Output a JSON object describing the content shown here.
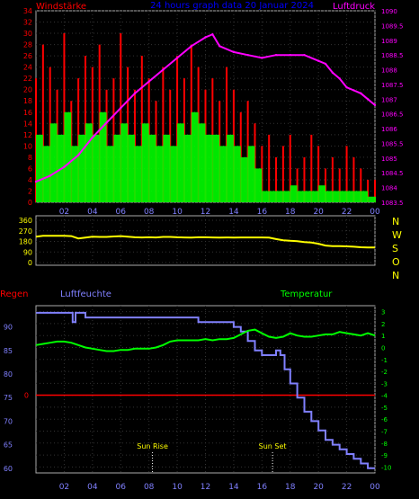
{
  "header": {
    "title": "24 hours graph data  20 Januar 2024",
    "left_label": "Windstärke",
    "right_label": "Luftdruck"
  },
  "colors": {
    "background": "#000000",
    "axis": "#aaaaaa",
    "grid": "#333333",
    "wind_gust": "#ff0000",
    "wind_avg": "#00ff00",
    "pressure": "#ff00ff",
    "direction": "#ffff00",
    "humidity": "#8080ff",
    "temperature": "#00ff00",
    "rain": "#ff0000",
    "title": "#0000ff",
    "left_tick": "#ff0000",
    "right_tick": "#ff00ff",
    "dir_tick": "#ffff00",
    "hum_tick": "#8080ff",
    "temp_tick": "#00ff00",
    "x_tick": "#8080ff",
    "sun_label": "#ffff00"
  },
  "x_ticks": [
    "02",
    "04",
    "06",
    "08",
    "10",
    "12",
    "14",
    "16",
    "18",
    "20",
    "22",
    "00"
  ],
  "chart_data": [
    {
      "type": "line",
      "title": "24 hours graph data  20 Januar 2024",
      "xlabel": "",
      "x_range_hours": [
        0,
        24
      ],
      "ylabel_left": "Windstärke",
      "ylabel_right": "Luftdruck",
      "ylim_left": [
        0,
        34
      ],
      "ylim_right": [
        1083.5,
        1090
      ],
      "y_ticks_left": [
        "0",
        "2",
        "4",
        "6",
        "8",
        "10",
        "12",
        "14",
        "16",
        "18",
        "20",
        "22",
        "24",
        "26",
        "28",
        "30",
        "32",
        "34"
      ],
      "y_ticks_right": [
        "1083.5",
        "1084",
        "1084.5",
        "1085",
        "1085.5",
        "1086",
        "1086.5",
        "1087",
        "1087.5",
        "1088",
        "1088.5",
        "1089",
        "1089.5",
        "1090"
      ],
      "series": [
        {
          "name": "",
          "axis": "left",
          "x": [
            0,
            0.5,
            1,
            1.5,
            2,
            2.5,
            3,
            3.5,
            4,
            4.5,
            5,
            5.5,
            6,
            6.5,
            7,
            7.5,
            8,
            8.5,
            9,
            9.5,
            10,
            10.5,
            11,
            11.5,
            12,
            12.5,
            13,
            13.5,
            14,
            14.5,
            15,
            15.5,
            16,
            16.5,
            17,
            17.5,
            18,
            18.5,
            19,
            19.5,
            20,
            20.5,
            21,
            21.5,
            22,
            22.5,
            23,
            23.5,
            24
          ],
          "values": [
            22,
            28,
            24,
            20,
            30,
            18,
            22,
            26,
            24,
            28,
            20,
            22,
            30,
            24,
            20,
            26,
            22,
            18,
            24,
            20,
            26,
            22,
            28,
            24,
            20,
            22,
            18,
            24,
            20,
            16,
            18,
            14,
            10,
            12,
            8,
            10,
            12,
            6,
            8,
            12,
            10,
            6,
            8,
            6,
            10,
            8,
            6,
            4,
            4
          ]
        },
        {
          "name": "",
          "axis": "left",
          "x": [
            0,
            0.5,
            1,
            1.5,
            2,
            2.5,
            3,
            3.5,
            4,
            4.5,
            5,
            5.5,
            6,
            6.5,
            7,
            7.5,
            8,
            8.5,
            9,
            9.5,
            10,
            10.5,
            11,
            11.5,
            12,
            12.5,
            13,
            13.5,
            14,
            14.5,
            15,
            15.5,
            16,
            16.5,
            17,
            17.5,
            18,
            18.5,
            19,
            19.5,
            20,
            20.5,
            21,
            21.5,
            22,
            22.5,
            23,
            23.5,
            24
          ],
          "values": [
            12,
            10,
            14,
            12,
            16,
            10,
            12,
            14,
            12,
            16,
            10,
            12,
            14,
            12,
            10,
            14,
            12,
            10,
            12,
            10,
            14,
            12,
            16,
            14,
            12,
            12,
            10,
            12,
            10,
            8,
            10,
            6,
            2,
            2,
            2,
            2,
            3,
            2,
            2,
            2,
            3,
            2,
            2,
            2,
            2,
            2,
            2,
            1,
            1
          ]
        },
        {
          "name": "",
          "axis": "right",
          "x": [
            0,
            1,
            2,
            3,
            4,
            5,
            6,
            7,
            8,
            9,
            10,
            11,
            12,
            12.5,
            13,
            14,
            15,
            16,
            17,
            18,
            19,
            20,
            20.5,
            21,
            21.5,
            22,
            22.5,
            23,
            23.5,
            24
          ],
          "values": [
            1084.2,
            1084.4,
            1084.7,
            1085.1,
            1085.7,
            1086.2,
            1086.7,
            1087.2,
            1087.6,
            1088.0,
            1088.4,
            1088.8,
            1089.1,
            1089.2,
            1088.8,
            1088.6,
            1088.5,
            1088.4,
            1088.5,
            1088.5,
            1088.5,
            1088.3,
            1088.2,
            1087.9,
            1087.7,
            1087.4,
            1087.3,
            1087.2,
            1087.0,
            1086.8
          ]
        }
      ]
    },
    {
      "type": "line",
      "title": "",
      "x_range_hours": [
        0,
        24
      ],
      "ylim": [
        0,
        360
      ],
      "y_ticks": [
        "0",
        "90",
        "180",
        "270",
        "360"
      ],
      "dir_labels": [
        "N",
        "W",
        "S",
        "O",
        "N"
      ],
      "series": [
        {
          "name": "",
          "x": [
            0,
            0.5,
            1,
            1.5,
            2,
            2.5,
            3,
            3.5,
            4,
            4.5,
            5,
            5.5,
            6,
            6.5,
            7,
            7.5,
            8,
            8.5,
            9,
            9.5,
            10,
            10.5,
            11,
            11.5,
            12,
            12.5,
            13,
            13.5,
            14,
            14.5,
            15,
            15.5,
            16,
            16.5,
            17,
            17.5,
            18,
            18.5,
            19,
            19.5,
            20,
            20.5,
            21,
            21.5,
            22,
            22.5,
            23,
            23.5,
            24
          ],
          "values": [
            220,
            228,
            228,
            228,
            228,
            225,
            205,
            212,
            220,
            218,
            218,
            222,
            225,
            220,
            215,
            214,
            215,
            214,
            218,
            218,
            215,
            214,
            213,
            215,
            215,
            214,
            213,
            214,
            213,
            214,
            214,
            214,
            214,
            212,
            200,
            190,
            185,
            182,
            175,
            170,
            160,
            145,
            140,
            140,
            138,
            135,
            130,
            128,
            128
          ]
        }
      ]
    },
    {
      "type": "line",
      "title": "",
      "x_range_hours": [
        0,
        24
      ],
      "labels_top": [
        "Regen",
        "Luftfeuchte",
        "Temperatur"
      ],
      "ylim_humidity": [
        59,
        94.5
      ],
      "ylim_temperature": [
        -10.5,
        3.5
      ],
      "y_ticks_humidity": [
        "60",
        "65",
        "70",
        "75",
        "80",
        "85",
        "90"
      ],
      "y_ticks_temperature": [
        "-10",
        "-9",
        "-8",
        "-7",
        "-6",
        "-5",
        "-4",
        "-3",
        "-2",
        "-1",
        "0",
        "1",
        "2",
        "3"
      ],
      "rain_axis_label": "0",
      "annotations": [
        {
          "label": "Sun Rise",
          "hour": 8.25
        },
        {
          "label": "Sun Set",
          "hour": 16.75
        }
      ],
      "series": [
        {
          "name": "",
          "axis": "humidity",
          "x": [
            0,
            0.5,
            1,
            1.5,
            2,
            2.5,
            2.6,
            2.8,
            3,
            3.5,
            4,
            4.5,
            5,
            6,
            7,
            8,
            9,
            10,
            10.5,
            11,
            11.5,
            12,
            12.5,
            13,
            14,
            14.5,
            15,
            15.5,
            16,
            16.3,
            16.6,
            17,
            17.3,
            17.6,
            18,
            18.5,
            19,
            19.5,
            20,
            20.5,
            21,
            21.5,
            22,
            22.5,
            23,
            23.5,
            24
          ],
          "values": [
            93,
            93,
            93,
            93,
            93,
            93,
            91,
            93,
            93,
            92,
            92,
            92,
            92,
            92,
            92,
            92,
            92,
            92,
            92,
            92,
            91,
            91,
            91,
            91,
            90,
            89,
            87,
            85,
            84,
            84,
            84,
            85,
            84,
            81,
            78,
            75,
            72,
            70,
            68,
            66,
            65,
            64,
            63,
            62,
            61,
            60,
            60
          ]
        },
        {
          "name": "",
          "axis": "temperature",
          "x": [
            0,
            0.5,
            1,
            1.5,
            2,
            2.5,
            3,
            3.5,
            4,
            4.5,
            5,
            5.5,
            6,
            6.5,
            7,
            7.5,
            8,
            8.5,
            9,
            9.5,
            10,
            10.5,
            11,
            11.5,
            12,
            12.5,
            13,
            13.5,
            14,
            14.5,
            15,
            15.5,
            16,
            16.5,
            17,
            17.5,
            18,
            18.5,
            19,
            19.5,
            20,
            20.5,
            21,
            21.5,
            22,
            22.5,
            23,
            23.5,
            24
          ],
          "values": [
            0.2,
            0.3,
            0.4,
            0.5,
            0.5,
            0.4,
            0.2,
            0,
            -0.1,
            -0.2,
            -0.3,
            -0.3,
            -0.2,
            -0.2,
            -0.1,
            -0.1,
            -0.1,
            0,
            0.2,
            0.5,
            0.6,
            0.6,
            0.6,
            0.6,
            0.7,
            0.6,
            0.7,
            0.7,
            0.8,
            1.1,
            1.4,
            1.5,
            1.2,
            0.9,
            0.8,
            0.9,
            1.2,
            1.0,
            0.9,
            0.9,
            1.0,
            1.1,
            1.1,
            1.3,
            1.2,
            1.1,
            1.0,
            1.2,
            1.0
          ]
        },
        {
          "name": "",
          "axis": "humidity",
          "x": [
            0,
            24
          ],
          "values": [
            75.5,
            75.5
          ]
        }
      ]
    }
  ]
}
